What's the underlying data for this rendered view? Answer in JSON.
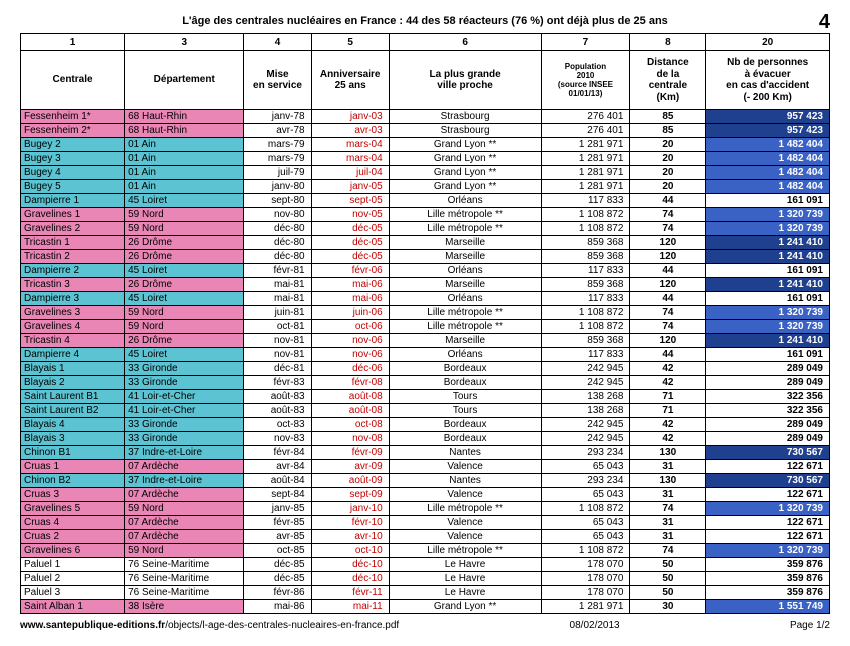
{
  "title": "L'âge des centrales nucléaires en France : 44 des 58 réacteurs (76 %) ont déjà plus de 25 ans",
  "page_number_badge": "4",
  "footer": {
    "url_bold": "www.santepublique-editions.fr",
    "url_rest": "/objects/l-age-des-centrales-nucleaires-en-france.pdf",
    "date": "08/02/2013",
    "page": "Page 1/2"
  },
  "colors": {
    "pink": "#e986b5",
    "cyan": "#5bc3d1",
    "anniv_red": "#c00000",
    "evac_white_bold": "#ffffff",
    "navy": "#1f3f8f",
    "midblue": "#3a62c4",
    "bg_plain": "#ffffff"
  },
  "col_widths": [
    "96",
    "110",
    "62",
    "72",
    "140",
    "82",
    "70",
    "114"
  ],
  "numheaders": [
    "1",
    "3",
    "4",
    "5",
    "6",
    "7",
    "8",
    "20"
  ],
  "headers": [
    "Centrale",
    "Département",
    "Mise\nen service",
    "Anniversaire\n25 ans",
    "La plus grande\nville proche",
    "Population\n2010\n(source INSEE\n01/01/13)",
    "Distance\nde la\ncentrale\n(Km)",
    "Nb de personnes\nà évacuer\nen cas d'accident\n(- 200 Km)"
  ],
  "rows": [
    {
      "g": "pink",
      "c": [
        "Fessenheim 1*",
        "68 Haut-Rhin",
        "janv-78",
        "janv-03",
        "Strasbourg",
        "276 401",
        "85",
        "957 423"
      ],
      "e": "navy"
    },
    {
      "g": "pink",
      "c": [
        "Fessenheim 2*",
        "68 Haut-Rhin",
        "avr-78",
        "avr-03",
        "Strasbourg",
        "276 401",
        "85",
        "957 423"
      ],
      "e": "navy"
    },
    {
      "g": "cyan",
      "c": [
        "Bugey 2",
        "01 Ain",
        "mars-79",
        "mars-04",
        "Grand Lyon **",
        "1 281 971",
        "20",
        "1 482 404"
      ],
      "e": "midblue"
    },
    {
      "g": "cyan",
      "c": [
        "Bugey 3",
        "01 Ain",
        "mars-79",
        "mars-04",
        "Grand Lyon **",
        "1 281 971",
        "20",
        "1 482 404"
      ],
      "e": "midblue"
    },
    {
      "g": "cyan",
      "c": [
        "Bugey 4",
        "01 Ain",
        "juil-79",
        "juil-04",
        "Grand Lyon **",
        "1 281 971",
        "20",
        "1 482 404"
      ],
      "e": "midblue"
    },
    {
      "g": "cyan",
      "c": [
        "Bugey 5",
        "01 Ain",
        "janv-80",
        "janv-05",
        "Grand Lyon **",
        "1 281 971",
        "20",
        "1 482 404"
      ],
      "e": "midblue"
    },
    {
      "g": "cyan",
      "c": [
        "Dampierre 1",
        "45 Loiret",
        "sept-80",
        "sept-05",
        "Orléans",
        "117 833",
        "44",
        "161 091"
      ],
      "e": "plain"
    },
    {
      "g": "pink",
      "c": [
        "Gravelines 1",
        "59 Nord",
        "nov-80",
        "nov-05",
        "Lille métropole **",
        "1 108 872",
        "74",
        "1 320 739"
      ],
      "e": "midblue"
    },
    {
      "g": "pink",
      "c": [
        "Gravelines 2",
        "59 Nord",
        "déc-80",
        "déc-05",
        "Lille métropole **",
        "1 108 872",
        "74",
        "1 320 739"
      ],
      "e": "midblue"
    },
    {
      "g": "pink",
      "c": [
        "Tricastin 1",
        "26 Drôme",
        "déc-80",
        "déc-05",
        "Marseille",
        "859 368",
        "120",
        "1 241 410"
      ],
      "e": "navy"
    },
    {
      "g": "pink",
      "c": [
        "Tricastin 2",
        "26 Drôme",
        "déc-80",
        "déc-05",
        "Marseille",
        "859 368",
        "120",
        "1 241 410"
      ],
      "e": "navy"
    },
    {
      "g": "cyan",
      "c": [
        "Dampierre 2",
        "45 Loiret",
        "févr-81",
        "févr-06",
        "Orléans",
        "117 833",
        "44",
        "161 091"
      ],
      "e": "plain"
    },
    {
      "g": "pink",
      "c": [
        "Tricastin 3",
        "26 Drôme",
        "mai-81",
        "mai-06",
        "Marseille",
        "859 368",
        "120",
        "1 241 410"
      ],
      "e": "navy"
    },
    {
      "g": "cyan",
      "c": [
        "Dampierre 3",
        "45 Loiret",
        "mai-81",
        "mai-06",
        "Orléans",
        "117 833",
        "44",
        "161 091"
      ],
      "e": "plain"
    },
    {
      "g": "pink",
      "c": [
        "Gravelines 3",
        "59 Nord",
        "juin-81",
        "juin-06",
        "Lille métropole **",
        "1 108 872",
        "74",
        "1 320 739"
      ],
      "e": "midblue"
    },
    {
      "g": "pink",
      "c": [
        "Gravelines 4",
        "59 Nord",
        "oct-81",
        "oct-06",
        "Lille métropole **",
        "1 108 872",
        "74",
        "1 320 739"
      ],
      "e": "midblue"
    },
    {
      "g": "pink",
      "c": [
        "Tricastin 4",
        "26 Drôme",
        "nov-81",
        "nov-06",
        "Marseille",
        "859 368",
        "120",
        "1 241 410"
      ],
      "e": "navy"
    },
    {
      "g": "cyan",
      "c": [
        "Dampierre 4",
        "45 Loiret",
        "nov-81",
        "nov-06",
        "Orléans",
        "117 833",
        "44",
        "161 091"
      ],
      "e": "plain"
    },
    {
      "g": "cyan",
      "c": [
        "Blayais 1",
        "33 Gironde",
        "déc-81",
        "déc-06",
        "Bordeaux",
        "242 945",
        "42",
        "289 049"
      ],
      "e": "plain"
    },
    {
      "g": "cyan",
      "c": [
        "Blayais 2",
        "33 Gironde",
        "févr-83",
        "févr-08",
        "Bordeaux",
        "242 945",
        "42",
        "289 049"
      ],
      "e": "plain"
    },
    {
      "g": "cyan",
      "c": [
        "Saint Laurent B1",
        "41 Loir-et-Cher",
        "août-83",
        "août-08",
        "Tours",
        "138 268",
        "71",
        "322 356"
      ],
      "e": "plain"
    },
    {
      "g": "cyan",
      "c": [
        "Saint Laurent B2",
        "41 Loir-et-Cher",
        "août-83",
        "août-08",
        "Tours",
        "138 268",
        "71",
        "322 356"
      ],
      "e": "plain"
    },
    {
      "g": "cyan",
      "c": [
        "Blayais 4",
        "33 Gironde",
        "oct-83",
        "oct-08",
        "Bordeaux",
        "242 945",
        "42",
        "289 049"
      ],
      "e": "plain"
    },
    {
      "g": "cyan",
      "c": [
        "Blayais 3",
        "33 Gironde",
        "nov-83",
        "nov-08",
        "Bordeaux",
        "242 945",
        "42",
        "289 049"
      ],
      "e": "plain"
    },
    {
      "g": "cyan",
      "c": [
        "Chinon B1",
        "37 Indre-et-Loire",
        "févr-84",
        "févr-09",
        "Nantes",
        "293 234",
        "130",
        "730 567"
      ],
      "e": "navy"
    },
    {
      "g": "pink",
      "c": [
        "Cruas 1",
        "07 Ardèche",
        "avr-84",
        "avr-09",
        "Valence",
        "65 043",
        "31",
        "122 671"
      ],
      "e": "plain"
    },
    {
      "g": "cyan",
      "c": [
        "Chinon B2",
        "37 Indre-et-Loire",
        "août-84",
        "août-09",
        "Nantes",
        "293 234",
        "130",
        "730 567"
      ],
      "e": "navy"
    },
    {
      "g": "pink",
      "c": [
        "Cruas 3",
        "07 Ardèche",
        "sept-84",
        "sept-09",
        "Valence",
        "65 043",
        "31",
        "122 671"
      ],
      "e": "plain"
    },
    {
      "g": "pink",
      "c": [
        "Gravelines 5",
        "59 Nord",
        "janv-85",
        "janv-10",
        "Lille métropole **",
        "1 108 872",
        "74",
        "1 320 739"
      ],
      "e": "midblue"
    },
    {
      "g": "pink",
      "c": [
        "Cruas 4",
        "07 Ardèche",
        "févr-85",
        "févr-10",
        "Valence",
        "65 043",
        "31",
        "122 671"
      ],
      "e": "plain"
    },
    {
      "g": "pink",
      "c": [
        "Cruas 2",
        "07 Ardèche",
        "avr-85",
        "avr-10",
        "Valence",
        "65 043",
        "31",
        "122 671"
      ],
      "e": "plain"
    },
    {
      "g": "pink",
      "c": [
        "Gravelines 6",
        "59 Nord",
        "oct-85",
        "oct-10",
        "Lille métropole **",
        "1 108 872",
        "74",
        "1 320 739"
      ],
      "e": "midblue"
    },
    {
      "g": "plain",
      "c": [
        "Paluel 1",
        "76 Seine-Maritime",
        "déc-85",
        "déc-10",
        "Le Havre",
        "178 070",
        "50",
        "359 876"
      ],
      "e": "plain"
    },
    {
      "g": "plain",
      "c": [
        "Paluel 2",
        "76 Seine-Maritime",
        "déc-85",
        "déc-10",
        "Le Havre",
        "178 070",
        "50",
        "359 876"
      ],
      "e": "plain"
    },
    {
      "g": "plain",
      "c": [
        "Paluel 3",
        "76 Seine-Maritime",
        "févr-86",
        "févr-11",
        "Le Havre",
        "178 070",
        "50",
        "359 876"
      ],
      "e": "plain"
    },
    {
      "g": "pink",
      "c": [
        "Saint Alban 1",
        "38 Isère",
        "mai-86",
        "mai-11",
        "Grand Lyon **",
        "1 281 971",
        "30",
        "1 551 749"
      ],
      "e": "midblue"
    }
  ]
}
